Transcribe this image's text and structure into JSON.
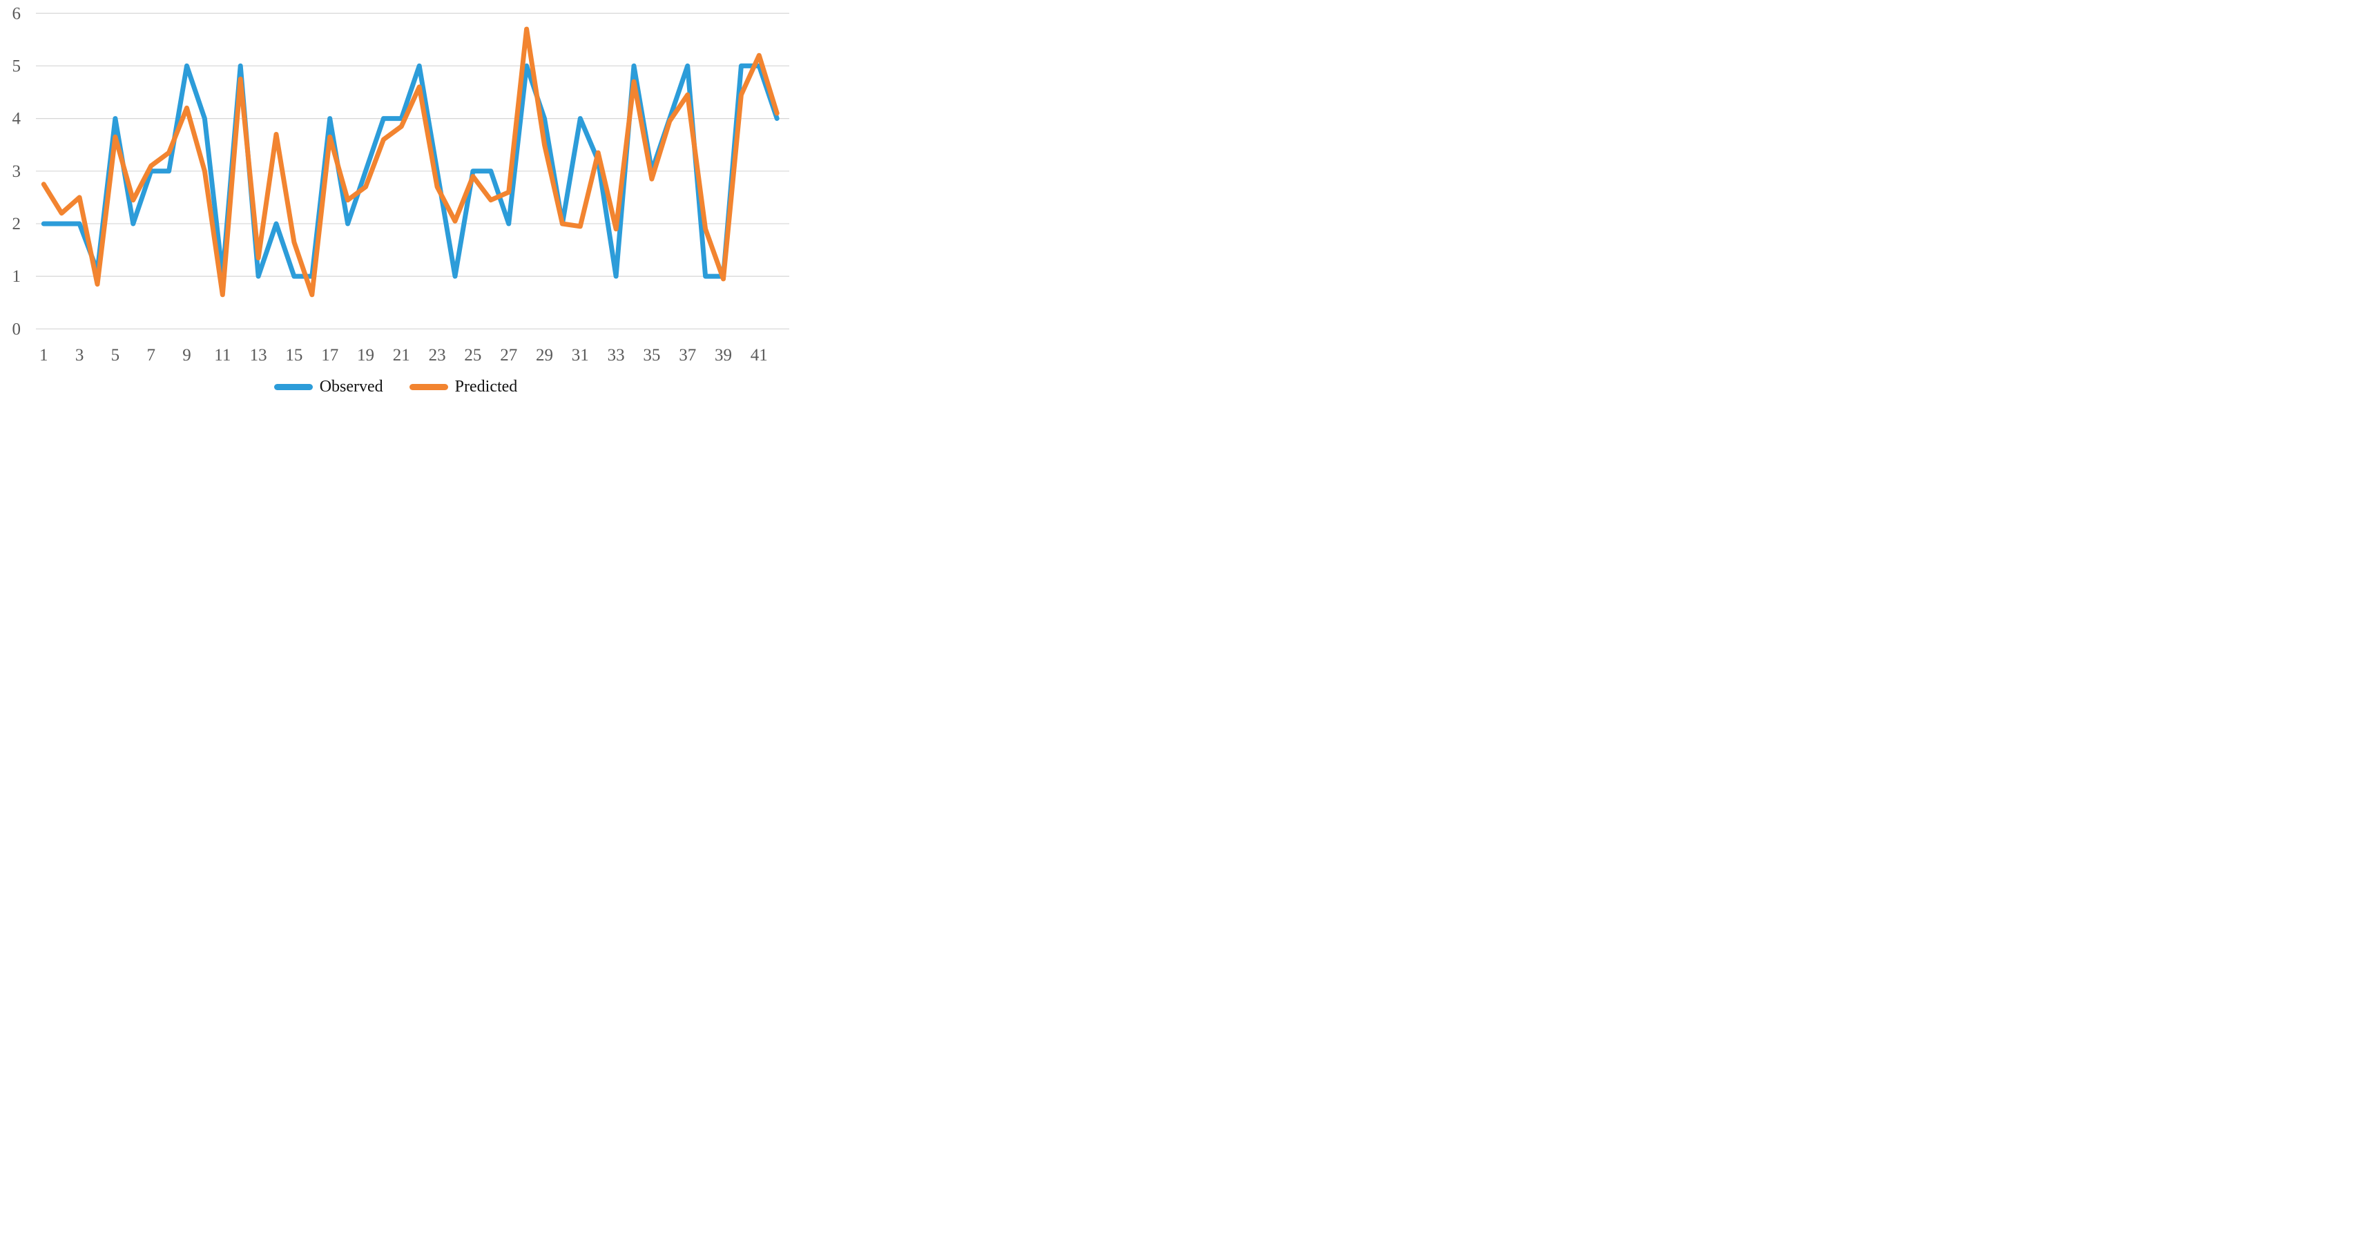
{
  "chart_data": {
    "type": "line",
    "title": "",
    "xlabel": "",
    "ylabel": "",
    "x": [
      1,
      2,
      3,
      4,
      5,
      6,
      7,
      8,
      9,
      10,
      11,
      12,
      13,
      14,
      15,
      16,
      17,
      18,
      19,
      20,
      21,
      22,
      23,
      24,
      25,
      26,
      27,
      28,
      29,
      30,
      31,
      32,
      33,
      34,
      35,
      36,
      37,
      38,
      39,
      40,
      41,
      42
    ],
    "series": [
      {
        "name": "Observed",
        "color": "#2C9CD9",
        "values": [
          2,
          2,
          2,
          1.1,
          4,
          2,
          3,
          3,
          5,
          4,
          1,
          5,
          1,
          2,
          1,
          1,
          4,
          2,
          3,
          4,
          4,
          5,
          3,
          1,
          3,
          3,
          2,
          5,
          4,
          2,
          4,
          3.2,
          1,
          5,
          3,
          4,
          5,
          1,
          1,
          5,
          5,
          4
        ]
      },
      {
        "name": "Predicted",
        "color": "#F28430",
        "values": [
          2.75,
          2.2,
          2.5,
          0.85,
          3.65,
          2.45,
          3.1,
          3.35,
          4.2,
          3.0,
          0.65,
          4.75,
          1.35,
          3.7,
          1.65,
          0.65,
          3.65,
          2.45,
          2.7,
          3.6,
          3.85,
          4.6,
          2.7,
          2.05,
          2.9,
          2.45,
          2.6,
          5.7,
          3.5,
          2.0,
          1.95,
          3.35,
          1.9,
          4.7,
          2.85,
          3.95,
          4.45,
          1.9,
          0.95,
          4.45,
          5.2,
          4.1
        ]
      }
    ],
    "ylim": [
      0,
      6
    ],
    "yticks": [
      0,
      1,
      2,
      3,
      4,
      5,
      6
    ],
    "xticks": [
      1,
      3,
      5,
      7,
      9,
      11,
      13,
      15,
      17,
      19,
      21,
      23,
      25,
      27,
      29,
      31,
      33,
      35,
      37,
      39,
      41
    ],
    "grid": "horizontal",
    "gridline_color": "#D6D6D6",
    "axis_label_color": "#595959",
    "legend_position": "bottom",
    "background": "#FFFFFF"
  },
  "legend": {
    "items": [
      {
        "label": "Observed",
        "color": "#2C9CD9"
      },
      {
        "label": "Predicted",
        "color": "#F28430"
      }
    ]
  }
}
